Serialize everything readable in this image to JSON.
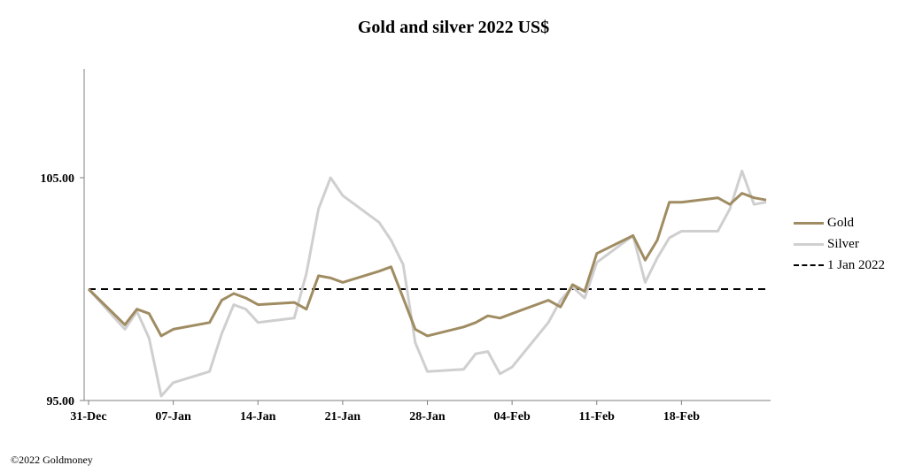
{
  "chart_data": {
    "type": "line",
    "title": "Gold and silver 2022  US$",
    "xlabel": "",
    "ylabel": "",
    "ylim": [
      95,
      105
    ],
    "yticks": [
      95,
      105
    ],
    "ytick_labels": [
      "95.00",
      "105.00"
    ],
    "xlim": [
      "2021-12-31",
      "2022-02-25"
    ],
    "xticks": [
      "2021-12-31",
      "2022-01-07",
      "2022-01-14",
      "2022-01-21",
      "2022-01-28",
      "2022-02-04",
      "2022-02-11",
      "2022-02-18"
    ],
    "xtick_labels": [
      "31-Dec",
      "07-Jan",
      "14-Jan",
      "21-Jan",
      "28-Jan",
      "04-Feb",
      "11-Feb",
      "18-Feb"
    ],
    "grid": false,
    "legend_position": "right",
    "series": [
      {
        "name": "Gold",
        "color": "#a08c62",
        "x": [
          "2021-12-31",
          "2022-01-03",
          "2022-01-04",
          "2022-01-05",
          "2022-01-06",
          "2022-01-07",
          "2022-01-10",
          "2022-01-11",
          "2022-01-12",
          "2022-01-13",
          "2022-01-14",
          "2022-01-17",
          "2022-01-18",
          "2022-01-19",
          "2022-01-20",
          "2022-01-21",
          "2022-01-24",
          "2022-01-25",
          "2022-01-26",
          "2022-01-27",
          "2022-01-28",
          "2022-01-31",
          "2022-02-01",
          "2022-02-02",
          "2022-02-03",
          "2022-02-04",
          "2022-02-07",
          "2022-02-08",
          "2022-02-09",
          "2022-02-10",
          "2022-02-11",
          "2022-02-14",
          "2022-02-15",
          "2022-02-16",
          "2022-02-17",
          "2022-02-18",
          "2022-02-21",
          "2022-02-22",
          "2022-02-23",
          "2022-02-24",
          "2022-02-25"
        ],
        "values": [
          100.0,
          98.4,
          99.1,
          98.9,
          97.9,
          98.2,
          98.5,
          99.5,
          99.8,
          99.6,
          99.3,
          99.4,
          99.1,
          100.6,
          100.5,
          100.3,
          100.8,
          101.0,
          99.6,
          98.2,
          97.9,
          98.3,
          98.5,
          98.8,
          98.7,
          98.9,
          99.5,
          99.2,
          100.2,
          99.9,
          101.6,
          102.4,
          101.3,
          102.2,
          103.9,
          103.9,
          104.1,
          103.8,
          104.3,
          104.1,
          104.0
        ]
      },
      {
        "name": "Silver",
        "color": "#cfcfcf",
        "x": [
          "2021-12-31",
          "2022-01-03",
          "2022-01-04",
          "2022-01-05",
          "2022-01-06",
          "2022-01-07",
          "2022-01-10",
          "2022-01-11",
          "2022-01-12",
          "2022-01-13",
          "2022-01-14",
          "2022-01-17",
          "2022-01-18",
          "2022-01-19",
          "2022-01-20",
          "2022-01-21",
          "2022-01-24",
          "2022-01-25",
          "2022-01-26",
          "2022-01-27",
          "2022-01-28",
          "2022-01-31",
          "2022-02-01",
          "2022-02-02",
          "2022-02-03",
          "2022-02-04",
          "2022-02-07",
          "2022-02-08",
          "2022-02-09",
          "2022-02-10",
          "2022-02-11",
          "2022-02-14",
          "2022-02-15",
          "2022-02-16",
          "2022-02-17",
          "2022-02-18",
          "2022-02-21",
          "2022-02-22",
          "2022-02-23",
          "2022-02-24",
          "2022-02-25"
        ],
        "values": [
          100.0,
          98.2,
          99.0,
          97.8,
          95.2,
          95.8,
          96.3,
          98.0,
          99.3,
          99.1,
          98.5,
          98.7,
          100.7,
          103.6,
          105.0,
          104.2,
          103.0,
          102.2,
          101.1,
          97.6,
          96.3,
          96.4,
          97.1,
          97.2,
          96.2,
          96.5,
          98.5,
          99.5,
          100.1,
          99.6,
          101.2,
          102.4,
          100.3,
          101.4,
          102.3,
          102.6,
          102.6,
          103.6,
          105.3,
          103.8,
          103.9
        ]
      },
      {
        "name": "1 Jan 2022",
        "color": "#000000",
        "dashed": true,
        "x": [
          "2021-12-31",
          "2022-02-25"
        ],
        "values": [
          100.0,
          100.0
        ]
      }
    ],
    "footnote": "©2022 Goldmoney"
  }
}
